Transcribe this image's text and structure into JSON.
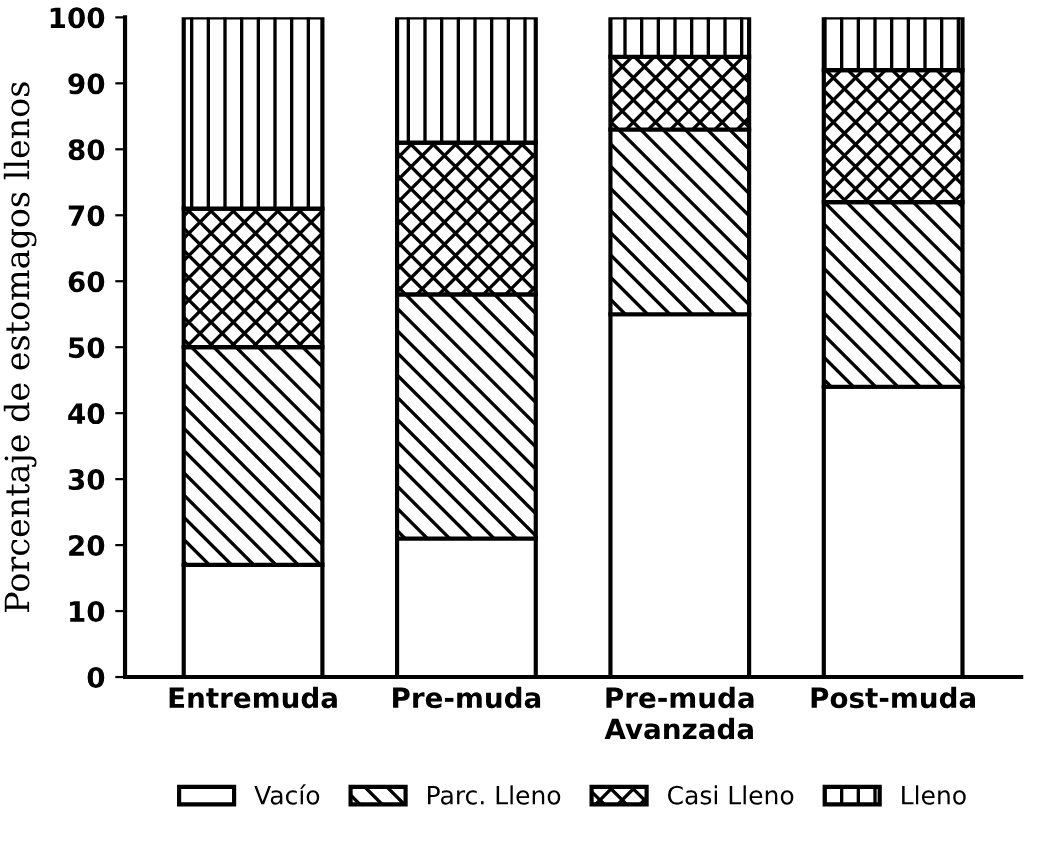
{
  "chart_data": {
    "type": "bar",
    "stacked": true,
    "ylabel": "Porcentaje de estomagos llenos",
    "categories": [
      "Entremuda",
      "Pre-muda",
      "Pre-muda\nAvanzada",
      "Post-muda"
    ],
    "series": [
      {
        "name": "Vacío",
        "color": "#ffffff",
        "values": [
          17,
          21,
          55,
          44
        ]
      },
      {
        "name": "Parc. Lleno",
        "color": "#000000",
        "values": [
          33,
          37,
          28,
          28
        ]
      },
      {
        "name": "Casi Lleno",
        "color": "#000000",
        "values": [
          21,
          23,
          11,
          20
        ]
      },
      {
        "name": "Lleno",
        "color": "#000000",
        "values": [
          29,
          19,
          6,
          8
        ]
      }
    ],
    "ylim": [
      0,
      100
    ],
    "yticks": [
      0,
      10,
      20,
      30,
      40,
      50,
      60,
      70,
      80,
      90,
      100
    ],
    "grid": false,
    "legend": "bottom"
  }
}
